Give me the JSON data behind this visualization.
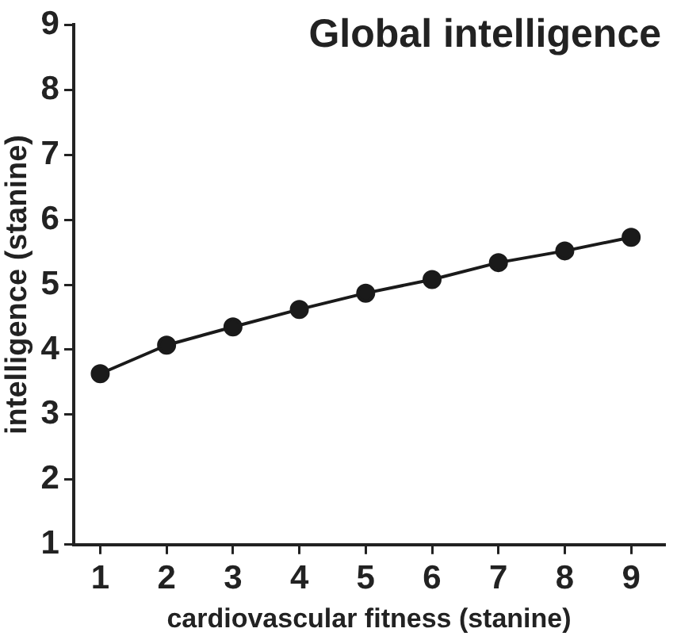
{
  "chart_data": {
    "type": "line",
    "title": "Global intelligence",
    "xlabel": "cardiovascular fitness (stanine)",
    "ylabel": "intelligence (stanine)",
    "x": [
      1,
      2,
      3,
      4,
      5,
      6,
      7,
      8,
      9
    ],
    "series": [
      {
        "color": "#1a1a1a",
        "values": [
          3.63,
          4.07,
          4.35,
          4.62,
          4.87,
          5.08,
          5.34,
          5.52,
          5.73
        ]
      }
    ],
    "xlim": [
      0.6,
      9.5
    ],
    "xticks": [
      1,
      2,
      3,
      4,
      5,
      6,
      7,
      8,
      9
    ],
    "ylim": [
      1,
      9
    ],
    "yticks": [
      1,
      2,
      3,
      4,
      5,
      6,
      7,
      8,
      9
    ],
    "grid": false,
    "legend": false,
    "marker": "circle",
    "line_style": "solid"
  }
}
